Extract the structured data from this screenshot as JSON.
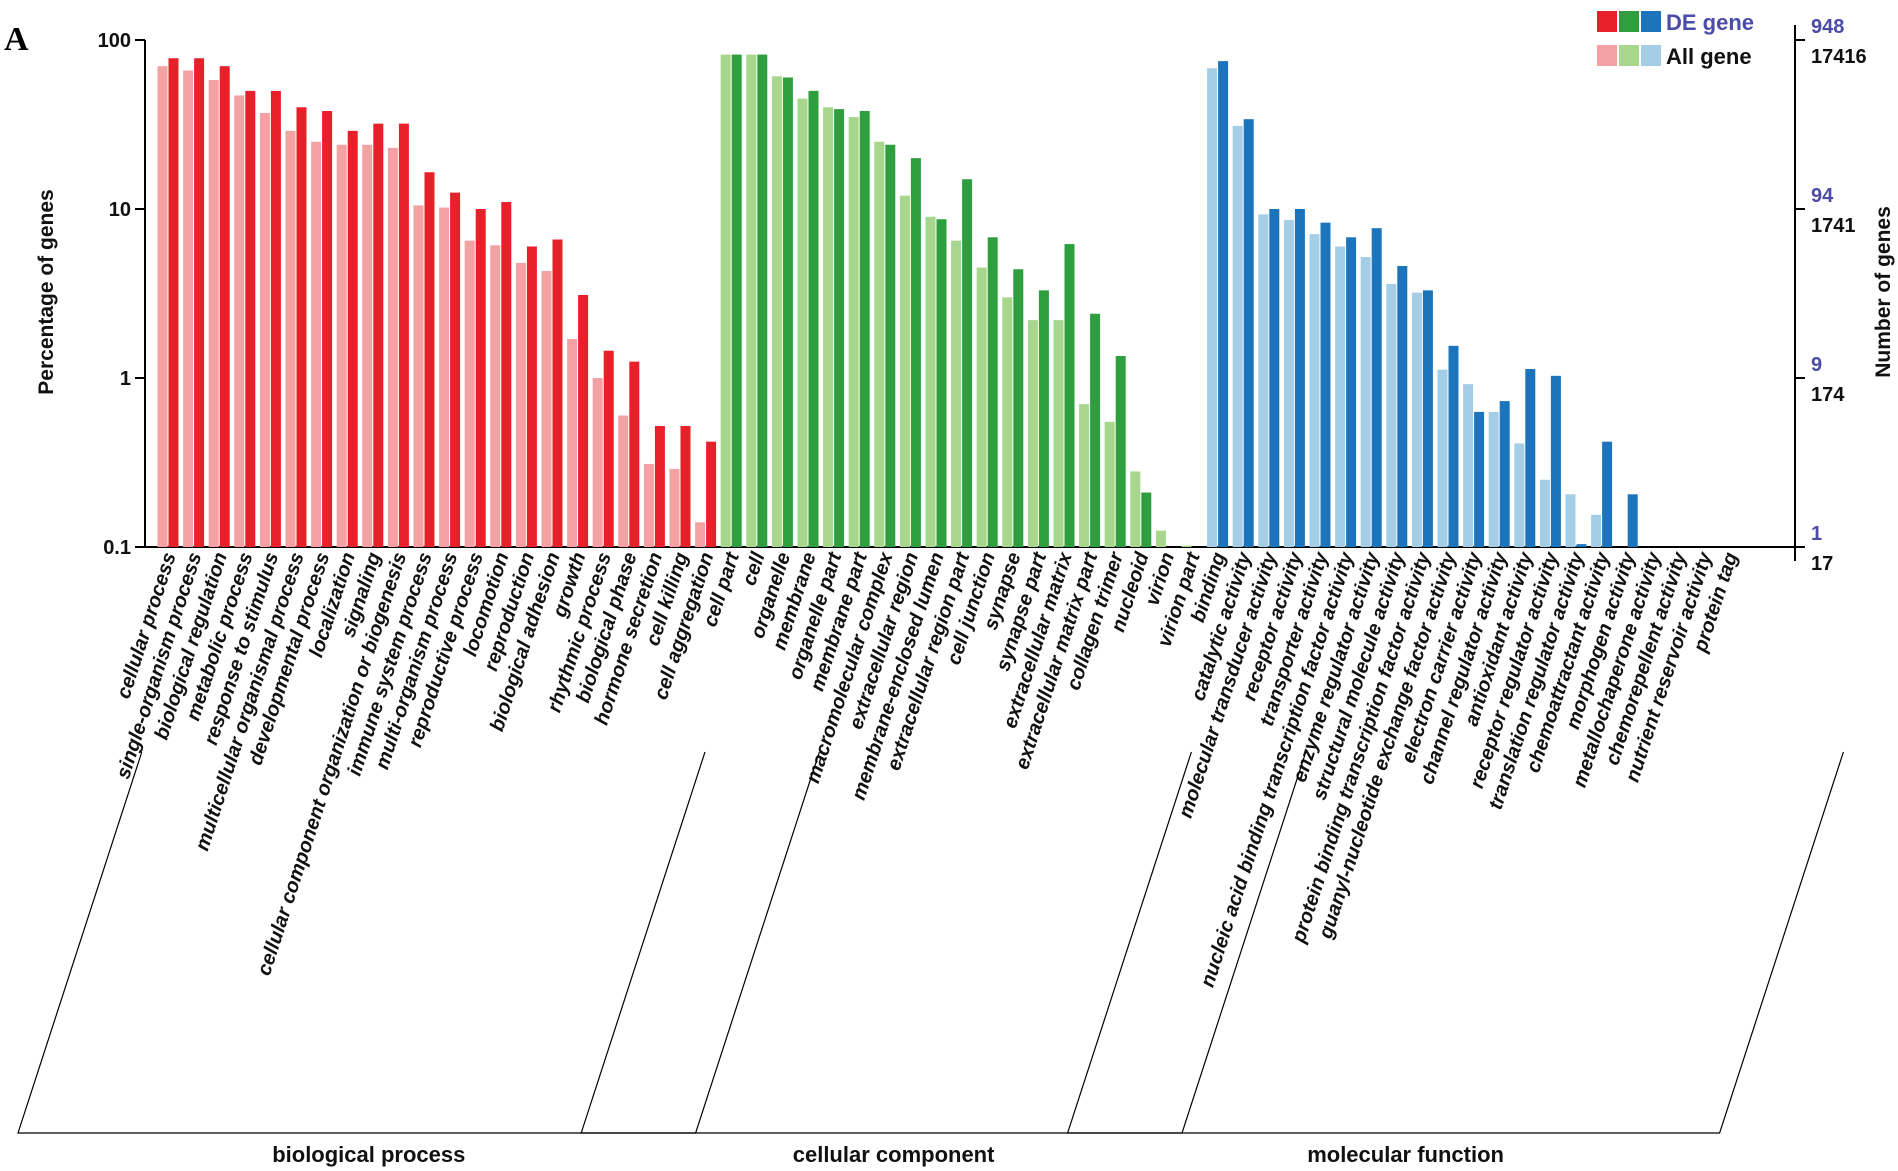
{
  "panel_label": "A",
  "chart_data": {
    "type": "bar",
    "scale": "log",
    "ylabel": "Percentage of genes",
    "y2label": "Number of genes",
    "y_ticks": [
      "100",
      "10",
      "1",
      "0.1"
    ],
    "ylim": [
      0.1,
      100
    ],
    "y2_ticks_de": [
      "948",
      "94",
      "9",
      "1"
    ],
    "y2_ticks_all": [
      "17416",
      "1741",
      "174",
      "17"
    ],
    "legend": {
      "de": "DE gene",
      "all": "All gene"
    },
    "colors": {
      "biological process": {
        "de": "#e8202a",
        "all": "#f4a1a3"
      },
      "cellular component": {
        "de": "#2e9e3f",
        "all": "#a8d68d"
      },
      "molecular function": {
        "de": "#1c75bc",
        "all": "#a6cde6"
      }
    },
    "groups": [
      {
        "name": "biological process",
        "categories": [
          "cellular process",
          "single-organism process",
          "biological regulation",
          "metabolic process",
          "response to stimulus",
          "multicellular organismal process",
          "developmental process",
          "localization",
          "signaling",
          "cellular component organization or biogenesis",
          "immune system process",
          "multi-organism process",
          "reproductive process",
          "locomotion",
          "reproduction",
          "biological adhesion",
          "growth",
          "rhythmic process",
          "biological phase",
          "hormone secretion",
          "cell killing",
          "cell aggregation"
        ],
        "all_gene": [
          70,
          66,
          58,
          47,
          37,
          29,
          25,
          24,
          24,
          23,
          10.5,
          10.2,
          6.5,
          6.1,
          4.8,
          4.3,
          1.7,
          1.0,
          0.6,
          0.31,
          0.29,
          0.14
        ],
        "de_gene": [
          78,
          78,
          70,
          50,
          50,
          40,
          38,
          29,
          32,
          32,
          16.5,
          12.5,
          10,
          11,
          6.0,
          6.6,
          3.1,
          1.45,
          1.25,
          0.52,
          0.52,
          0.42
        ]
      },
      {
        "name": "cellular component",
        "categories": [
          "cell part",
          "cell",
          "organelle",
          "membrane",
          "organelle part",
          "membrane part",
          "macromolecular complex",
          "extracellular region",
          "membrane-enclosed lumen",
          "extracellular region part",
          "cell junction",
          "synapse",
          "synapse part",
          "extracellular matrix",
          "extracellular matrix part",
          "collagen trimer",
          "nucleoid",
          "virion",
          "virion part"
        ],
        "all_gene": [
          82,
          82,
          61,
          45,
          40,
          35,
          25,
          12,
          9,
          6.5,
          4.5,
          3.0,
          2.2,
          2.2,
          0.7,
          0.55,
          0.28,
          0.125,
          0.102
        ],
        "de_gene": [
          82,
          82,
          60,
          50,
          39,
          38,
          24,
          20,
          8.7,
          15,
          6.8,
          4.4,
          3.3,
          6.2,
          2.4,
          1.35,
          0.21,
          null,
          null
        ]
      },
      {
        "name": "molecular function",
        "categories": [
          "binding",
          "catalytic activity",
          "molecular transducer activity",
          "receptor activity",
          "transporter activity",
          "nucleic acid binding transcription factor activity",
          "enzyme regulator activity",
          "structural molecule activity",
          "protein binding transcription factor activity",
          "guanyl-nucleotide exchange factor activity",
          "electron carrier activity",
          "channel regulator activity",
          "antioxidant activity",
          "receptor regulator activity",
          "translation regulator activity",
          "chemoattractant activity",
          "morphogen activity",
          "metallochaperone activity",
          "chemorepellent activity",
          "nutrient reservoir activity",
          "protein tag"
        ],
        "all_gene": [
          68,
          31,
          9.3,
          8.6,
          7.1,
          6.0,
          5.2,
          3.6,
          3.2,
          1.12,
          0.92,
          0.63,
          0.41,
          0.25,
          0.205,
          0.155,
          null,
          null,
          null,
          null,
          null
        ],
        "de_gene": [
          75,
          34,
          10,
          10,
          8.3,
          6.8,
          7.7,
          4.6,
          3.3,
          1.55,
          0.63,
          0.73,
          1.13,
          1.03,
          0.104,
          0.42,
          0.205,
          null,
          null,
          null,
          null
        ]
      }
    ]
  }
}
